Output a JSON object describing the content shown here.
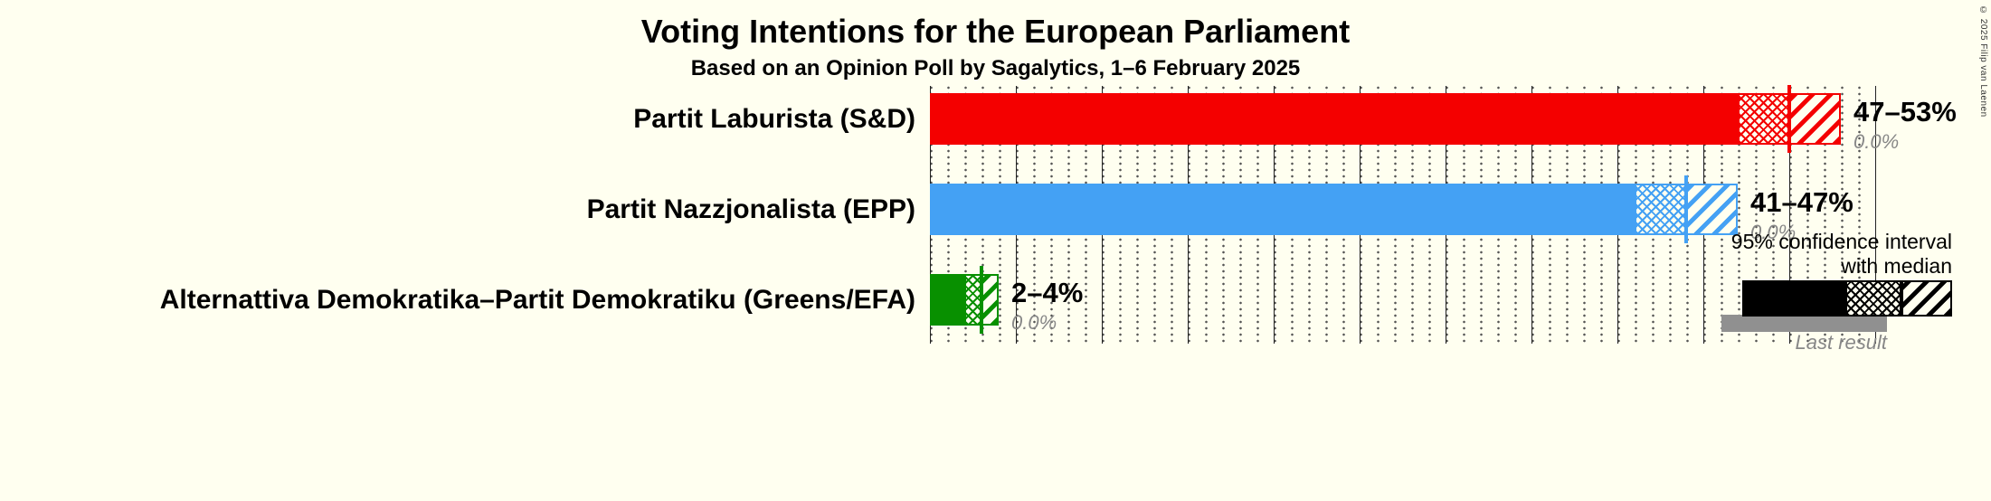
{
  "page": {
    "background": "#FFFFF0",
    "copyright": "© 2025 Filip van Laenen"
  },
  "chart_data": {
    "type": "bar",
    "orientation": "horizontal",
    "title": "Voting Intentions for the European Parliament",
    "subtitle": "Based on an Opinion Poll by Sagalytics, 1–6 February 2025",
    "x_axis": {
      "min": 0,
      "max": 55,
      "unit": "%",
      "minor_grid_step": 1,
      "major_grid_step": 5,
      "tick_labels_visible": false
    },
    "legend": {
      "ci_label": "95% confidence interval with median",
      "last_result_label": "Last result",
      "ci_sample_color": "#000000",
      "last_result_color": "#909090"
    },
    "parties": [
      {
        "name": "Partit Laburista (S&D)",
        "color": "#F40000",
        "ci_low": 47,
        "median": 50,
        "ci_high": 53,
        "ci_label": "47–53%",
        "last_result": 0.0,
        "last_result_label": "0.0%"
      },
      {
        "name": "Partit Nazzjonalista (EPP)",
        "color": "#44A1F4",
        "ci_low": 41,
        "median": 44,
        "ci_high": 47,
        "ci_label": "41–47%",
        "last_result": 0.0,
        "last_result_label": "0.0%"
      },
      {
        "name": "Alternattiva Demokratika–Partit Demokratiku (Greens/EFA)",
        "color": "#089000",
        "ci_low": 2,
        "median": 3,
        "ci_high": 4,
        "ci_label": "2–4%",
        "last_result": 0.0,
        "last_result_label": "0.0%"
      }
    ]
  }
}
